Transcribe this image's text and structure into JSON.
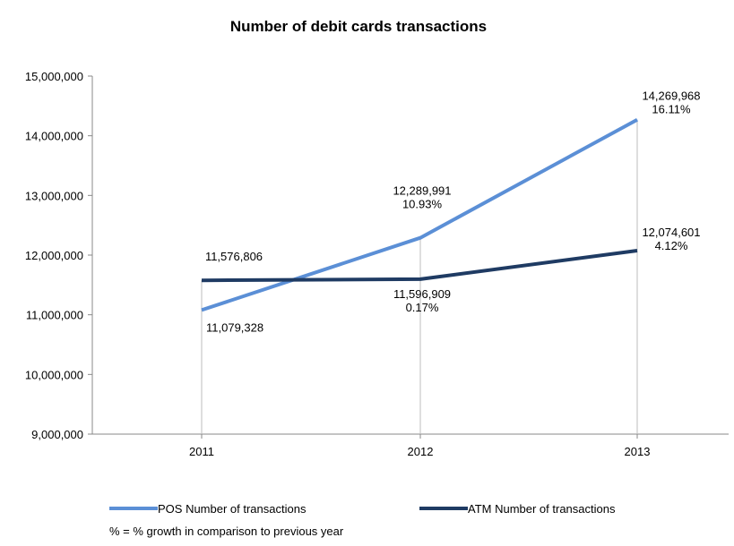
{
  "chart_data": {
    "type": "line",
    "title": "Number of debit cards transactions",
    "categories": [
      "2011",
      "2012",
      "2013"
    ],
    "ylim": [
      9000000,
      15000000
    ],
    "yticks": [
      9000000,
      10000000,
      11000000,
      12000000,
      13000000,
      14000000,
      15000000
    ],
    "ytick_labels": [
      "9,000,000",
      "10,000,000",
      "11,000,000",
      "12,000,000",
      "13,000,000",
      "14,000,000",
      "15,000,000"
    ],
    "grid": "vertical drop lines at categories",
    "legend_position": "bottom",
    "series": [
      {
        "name": "POS Number of transactions",
        "color": "#5b8fd6",
        "values": [
          11079328,
          12289991,
          14269968
        ],
        "labels": [
          [
            "11,079,328"
          ],
          [
            "12,289,991",
            "10.93%"
          ],
          [
            "14,269,968",
            "16.11%"
          ]
        ]
      },
      {
        "name": "ATM Number of transactions",
        "color": "#1f3b63",
        "values": [
          11576806,
          11596909,
          12074601
        ],
        "labels": [
          [
            "11,576,806"
          ],
          [
            "11,596,909",
            "0.17%"
          ],
          [
            "12,074,601",
            "4.12%"
          ]
        ]
      }
    ]
  },
  "footnote": "% = % growth in comparison to previous year"
}
